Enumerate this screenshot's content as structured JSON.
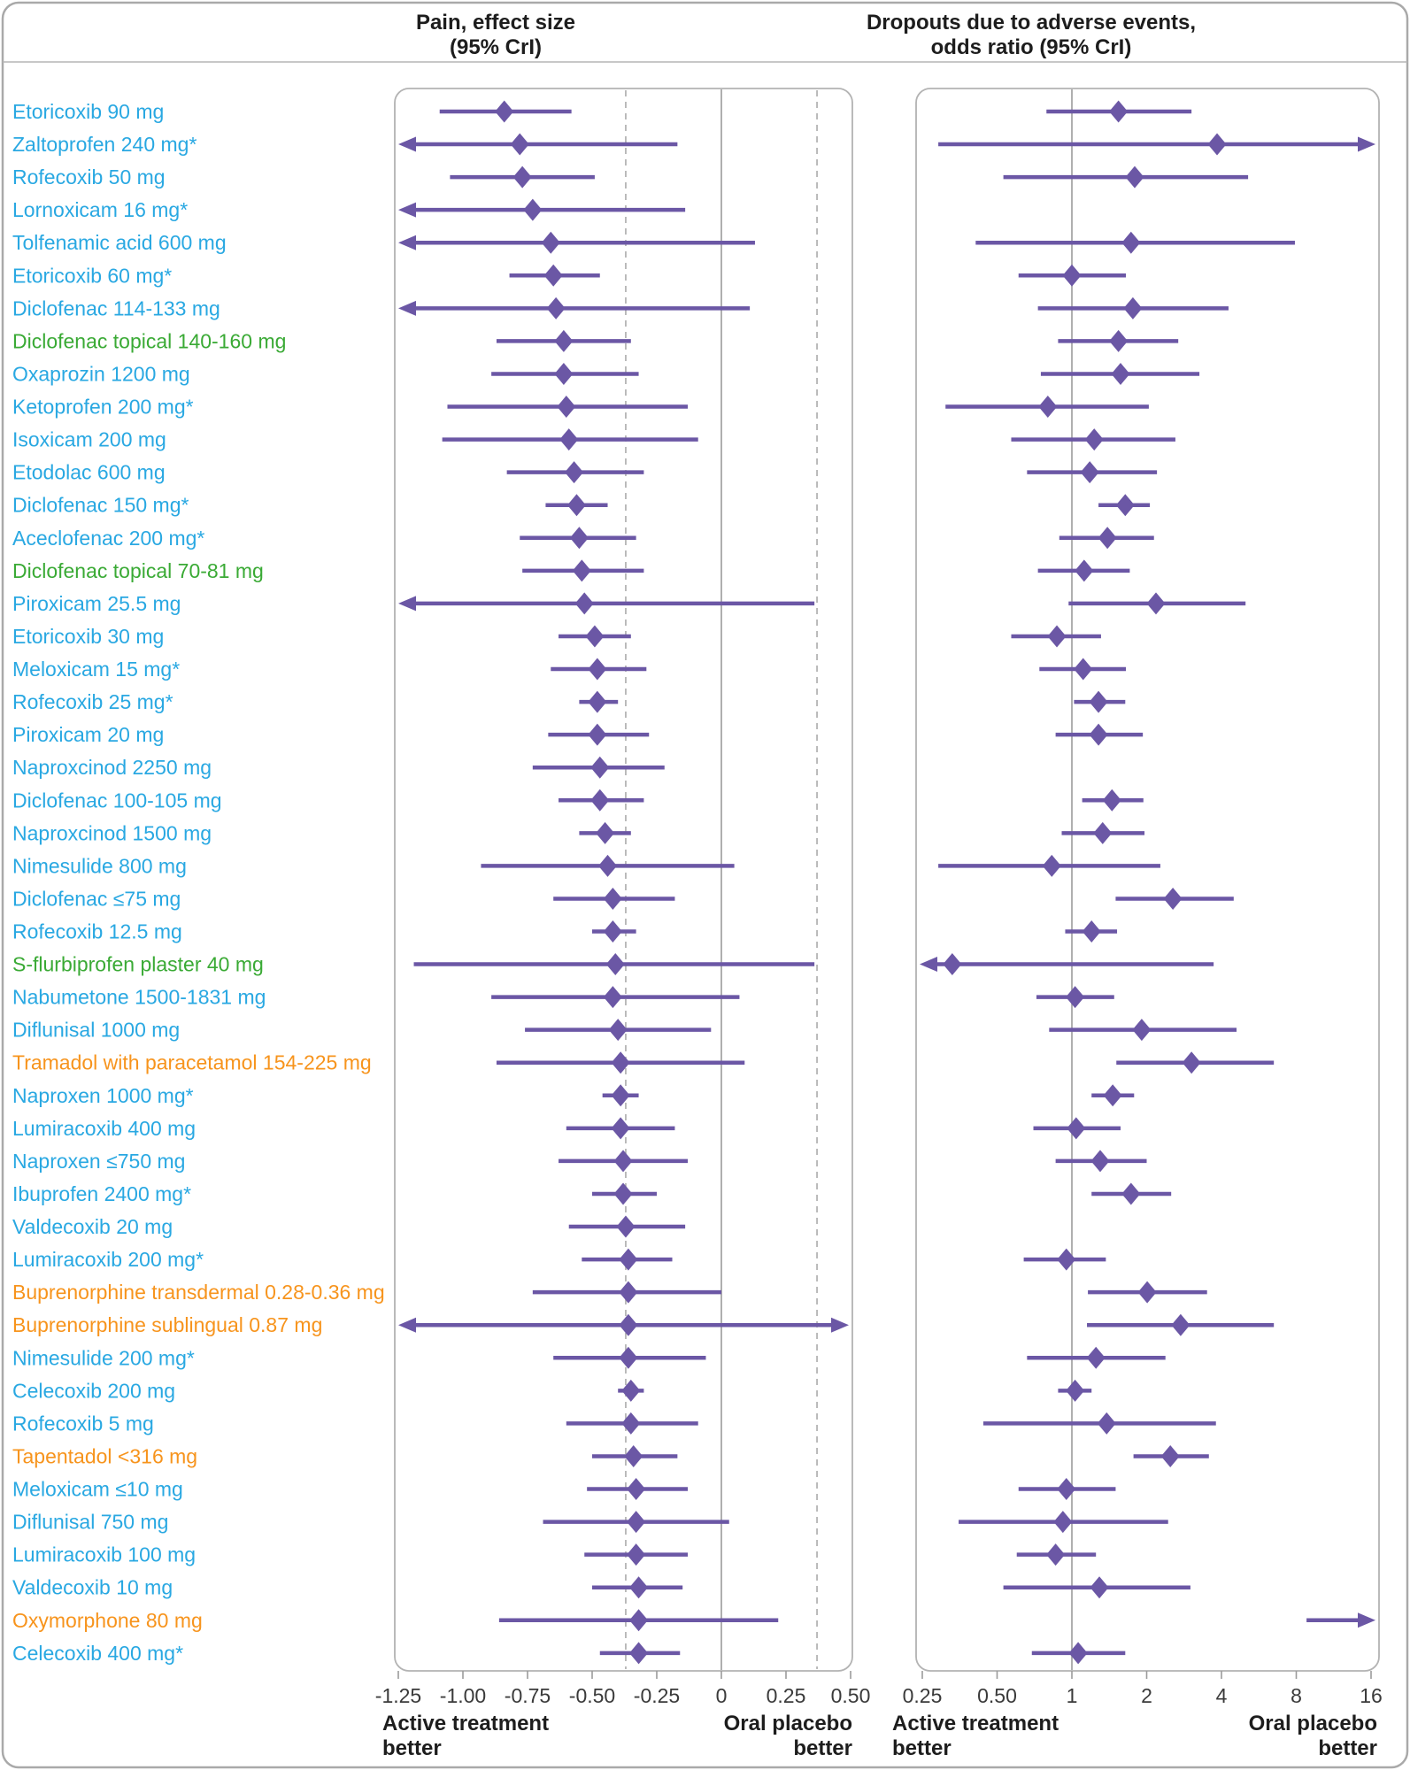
{
  "chart_data": {
    "type": "forest",
    "colors": {
      "blue": "#29a8e2",
      "green": "#3aaa35",
      "orange": "#f7941d",
      "purple": "#6b57a5",
      "grid": "#9b9b9b",
      "dashed": "#ababab",
      "panel_border": "#b3b3b3",
      "outer_border": "#a9a9a9",
      "text": "#1d1d1d",
      "tick_text": "#3a3a3a"
    },
    "panels": {
      "pain": {
        "title": [
          "Pain, effect size",
          "(95% CrI)"
        ],
        "axis_range": [
          -1.25,
          0.5
        ],
        "log": false,
        "ref_solid": 0,
        "ref_dashed": [
          -0.37,
          0.37
        ],
        "ticks": [
          {
            "v": -1.25,
            "l": "-1.25"
          },
          {
            "v": -1.0,
            "l": "-1.00"
          },
          {
            "v": -0.75,
            "l": "-0.75"
          },
          {
            "v": -0.5,
            "l": "-0.50"
          },
          {
            "v": -0.25,
            "l": "-0.25"
          },
          {
            "v": 0,
            "l": "0"
          },
          {
            "v": 0.25,
            "l": "0.25"
          },
          {
            "v": 0.5,
            "l": "0.50"
          }
        ],
        "better_left": [
          "Active treatment",
          "better"
        ],
        "better_right": [
          "Oral placebo",
          "better"
        ]
      },
      "drop": {
        "title": [
          "Dropouts due to adverse events,",
          "odds ratio (95% CrI)"
        ],
        "axis_range": [
          0.25,
          16
        ],
        "log": true,
        "ref_solid": 1,
        "ref_dashed": [],
        "ticks": [
          {
            "v": 0.25,
            "l": "0.25"
          },
          {
            "v": 0.5,
            "l": "0.50"
          },
          {
            "v": 1,
            "l": "1"
          },
          {
            "v": 2,
            "l": "2"
          },
          {
            "v": 4,
            "l": "4"
          },
          {
            "v": 8,
            "l": "8"
          },
          {
            "v": 16,
            "l": "16"
          }
        ],
        "better_left": [
          "Active treatment",
          "better"
        ],
        "better_right": [
          "Oral placebo",
          "better"
        ]
      }
    },
    "rows": [
      {
        "label": "Etoricoxib 90 mg",
        "c": "blue",
        "pain": {
          "lo": -1.09,
          "mid": -0.84,
          "hi": -0.58
        },
        "drop": {
          "lo": 0.79,
          "mid": 1.54,
          "hi": 3.03
        }
      },
      {
        "label": "Zaltoprofen 240 mg*",
        "c": "blue",
        "pain": {
          "lo": -1.25,
          "mid": -0.78,
          "hi": -0.17,
          "al": true
        },
        "drop": {
          "lo": 0.29,
          "mid": 3.84,
          "hi": 16,
          "ar": true
        }
      },
      {
        "label": "Rofecoxib 50 mg",
        "c": "blue",
        "pain": {
          "lo": -1.05,
          "mid": -0.77,
          "hi": -0.49
        },
        "drop": {
          "lo": 0.53,
          "mid": 1.79,
          "hi": 5.12
        }
      },
      {
        "label": "Lornoxicam 16 mg*",
        "c": "blue",
        "pain": {
          "lo": -1.25,
          "mid": -0.73,
          "hi": -0.14,
          "al": true
        },
        "drop": null
      },
      {
        "label": "Tolfenamic acid 600 mg",
        "c": "blue",
        "pain": {
          "lo": -1.25,
          "mid": -0.66,
          "hi": 0.13,
          "al": true
        },
        "drop": {
          "lo": 0.41,
          "mid": 1.73,
          "hi": 7.9
        }
      },
      {
        "label": "Etoricoxib 60 mg*",
        "c": "blue",
        "pain": {
          "lo": -0.82,
          "mid": -0.65,
          "hi": -0.47
        },
        "drop": {
          "lo": 0.61,
          "mid": 1.0,
          "hi": 1.65
        }
      },
      {
        "label": "Diclofenac 114-133 mg",
        "c": "blue",
        "pain": {
          "lo": -1.25,
          "mid": -0.64,
          "hi": 0.11,
          "al": true
        },
        "drop": {
          "lo": 0.73,
          "mid": 1.76,
          "hi": 4.27
        }
      },
      {
        "label": "Diclofenac topical 140-160 mg",
        "c": "green",
        "pain": {
          "lo": -0.87,
          "mid": -0.61,
          "hi": -0.35
        },
        "drop": {
          "lo": 0.88,
          "mid": 1.54,
          "hi": 2.68
        }
      },
      {
        "label": "Oxaprozin 1200 mg",
        "c": "blue",
        "pain": {
          "lo": -0.89,
          "mid": -0.61,
          "hi": -0.32
        },
        "drop": {
          "lo": 0.75,
          "mid": 1.57,
          "hi": 3.26
        }
      },
      {
        "label": "Ketoprofen 200 mg*",
        "c": "blue",
        "pain": {
          "lo": -1.06,
          "mid": -0.6,
          "hi": -0.13
        },
        "drop": {
          "lo": 0.31,
          "mid": 0.8,
          "hi": 2.04
        }
      },
      {
        "label": "Isoxicam 200 mg",
        "c": "blue",
        "pain": {
          "lo": -1.08,
          "mid": -0.59,
          "hi": -0.09
        },
        "drop": {
          "lo": 0.57,
          "mid": 1.23,
          "hi": 2.61
        }
      },
      {
        "label": "Etodolac 600 mg",
        "c": "blue",
        "pain": {
          "lo": -0.83,
          "mid": -0.57,
          "hi": -0.3
        },
        "drop": {
          "lo": 0.66,
          "mid": 1.18,
          "hi": 2.2
        }
      },
      {
        "label": "Diclofenac 150 mg*",
        "c": "blue",
        "pain": {
          "lo": -0.68,
          "mid": -0.56,
          "hi": -0.44
        },
        "drop": {
          "lo": 1.28,
          "mid": 1.64,
          "hi": 2.06
        }
      },
      {
        "label": "Aceclofenac 200 mg*",
        "c": "blue",
        "pain": {
          "lo": -0.78,
          "mid": -0.55,
          "hi": -0.33
        },
        "drop": {
          "lo": 0.89,
          "mid": 1.39,
          "hi": 2.14
        }
      },
      {
        "label": "Diclofenac topical 70-81 mg",
        "c": "green",
        "pain": {
          "lo": -0.77,
          "mid": -0.54,
          "hi": -0.3
        },
        "drop": {
          "lo": 0.73,
          "mid": 1.12,
          "hi": 1.71
        }
      },
      {
        "label": "Piroxicam 25.5 mg",
        "c": "blue",
        "pain": {
          "lo": -1.25,
          "mid": -0.53,
          "hi": 0.36,
          "al": true
        },
        "drop": {
          "lo": 0.97,
          "mid": 2.18,
          "hi": 5.0
        }
      },
      {
        "label": "Etoricoxib 30 mg",
        "c": "blue",
        "pain": {
          "lo": -0.63,
          "mid": -0.49,
          "hi": -0.35
        },
        "drop": {
          "lo": 0.57,
          "mid": 0.87,
          "hi": 1.31
        }
      },
      {
        "label": "Meloxicam 15 mg*",
        "c": "blue",
        "pain": {
          "lo": -0.66,
          "mid": -0.48,
          "hi": -0.29
        },
        "drop": {
          "lo": 0.74,
          "mid": 1.11,
          "hi": 1.65
        }
      },
      {
        "label": "Rofecoxib 25 mg*",
        "c": "blue",
        "pain": {
          "lo": -0.55,
          "mid": -0.48,
          "hi": -0.4
        },
        "drop": {
          "lo": 1.02,
          "mid": 1.28,
          "hi": 1.64
        }
      },
      {
        "label": "Piroxicam 20 mg",
        "c": "blue",
        "pain": {
          "lo": -0.67,
          "mid": -0.48,
          "hi": -0.28
        },
        "drop": {
          "lo": 0.86,
          "mid": 1.28,
          "hi": 1.93
        }
      },
      {
        "label": "Naproxcinod 2250 mg",
        "c": "blue",
        "pain": {
          "lo": -0.73,
          "mid": -0.47,
          "hi": -0.22
        },
        "drop": null
      },
      {
        "label": "Diclofenac 100-105 mg",
        "c": "blue",
        "pain": {
          "lo": -0.63,
          "mid": -0.47,
          "hi": -0.3
        },
        "drop": {
          "lo": 1.1,
          "mid": 1.45,
          "hi": 1.94
        }
      },
      {
        "label": "Naproxcinod 1500 mg",
        "c": "blue",
        "pain": {
          "lo": -0.55,
          "mid": -0.45,
          "hi": -0.35
        },
        "drop": {
          "lo": 0.91,
          "mid": 1.33,
          "hi": 1.96
        }
      },
      {
        "label": "Nimesulide 800 mg",
        "c": "blue",
        "pain": {
          "lo": -0.93,
          "mid": -0.44,
          "hi": 0.05
        },
        "drop": {
          "lo": 0.29,
          "mid": 0.83,
          "hi": 2.27
        }
      },
      {
        "label": "Diclofenac ≤75 mg",
        "c": "blue",
        "pain": {
          "lo": -0.65,
          "mid": -0.42,
          "hi": -0.18
        },
        "drop": {
          "lo": 1.5,
          "mid": 2.55,
          "hi": 4.48
        }
      },
      {
        "label": "Rofecoxib 12.5 mg",
        "c": "blue",
        "pain": {
          "lo": -0.5,
          "mid": -0.42,
          "hi": -0.33
        },
        "drop": {
          "lo": 0.94,
          "mid": 1.2,
          "hi": 1.52
        }
      },
      {
        "label": "S-flurbiprofen plaster 40 mg",
        "c": "green",
        "pain": {
          "lo": -1.19,
          "mid": -0.41,
          "hi": 0.36
        },
        "drop": {
          "lo": 0.25,
          "mid": 0.33,
          "hi": 3.72,
          "al": true
        }
      },
      {
        "label": "Nabumetone 1500-1831 mg",
        "c": "blue",
        "pain": {
          "lo": -0.89,
          "mid": -0.42,
          "hi": 0.07
        },
        "drop": {
          "lo": 0.72,
          "mid": 1.03,
          "hi": 1.48
        }
      },
      {
        "label": "Diflunisal 1000 mg",
        "c": "blue",
        "pain": {
          "lo": -0.76,
          "mid": -0.4,
          "hi": -0.04
        },
        "drop": {
          "lo": 0.81,
          "mid": 1.91,
          "hi": 4.6
        }
      },
      {
        "label": "Tramadol with paracetamol 154-225 mg",
        "c": "orange",
        "pain": {
          "lo": -0.87,
          "mid": -0.39,
          "hi": 0.09
        },
        "drop": {
          "lo": 1.51,
          "mid": 3.03,
          "hi": 6.5
        }
      },
      {
        "label": "Naproxen 1000 mg*",
        "c": "blue",
        "pain": {
          "lo": -0.46,
          "mid": -0.39,
          "hi": -0.32
        },
        "drop": {
          "lo": 1.2,
          "mid": 1.46,
          "hi": 1.78
        }
      },
      {
        "label": "Lumiracoxib 400 mg",
        "c": "blue",
        "pain": {
          "lo": -0.6,
          "mid": -0.39,
          "hi": -0.18
        },
        "drop": {
          "lo": 0.7,
          "mid": 1.04,
          "hi": 1.57
        }
      },
      {
        "label": "Naproxen ≤750 mg",
        "c": "blue",
        "pain": {
          "lo": -0.63,
          "mid": -0.38,
          "hi": -0.13
        },
        "drop": {
          "lo": 0.86,
          "mid": 1.3,
          "hi": 2.0
        }
      },
      {
        "label": "Ibuprofen 2400 mg*",
        "c": "blue",
        "pain": {
          "lo": -0.5,
          "mid": -0.38,
          "hi": -0.25
        },
        "drop": {
          "lo": 1.2,
          "mid": 1.73,
          "hi": 2.51
        }
      },
      {
        "label": "Valdecoxib 20 mg",
        "c": "blue",
        "pain": {
          "lo": -0.59,
          "mid": -0.37,
          "hi": -0.14
        },
        "drop": null
      },
      {
        "label": "Lumiracoxib 200 mg*",
        "c": "blue",
        "pain": {
          "lo": -0.54,
          "mid": -0.36,
          "hi": -0.19
        },
        "drop": {
          "lo": 0.64,
          "mid": 0.95,
          "hi": 1.37
        }
      },
      {
        "label": "Buprenorphine transdermal 0.28-0.36 mg",
        "c": "orange",
        "pain": {
          "lo": -0.73,
          "mid": -0.36,
          "hi": 0.0
        },
        "drop": {
          "lo": 1.16,
          "mid": 2.01,
          "hi": 3.5
        }
      },
      {
        "label": "Buprenorphine sublingual 0.87 mg",
        "c": "orange",
        "pain": {
          "lo": -1.25,
          "mid": -0.36,
          "hi": 0.5,
          "al": true,
          "ar": true
        },
        "drop": {
          "lo": 1.15,
          "mid": 2.74,
          "hi": 6.5
        }
      },
      {
        "label": "Nimesulide 200 mg*",
        "c": "blue",
        "pain": {
          "lo": -0.65,
          "mid": -0.36,
          "hi": -0.06
        },
        "drop": {
          "lo": 0.66,
          "mid": 1.25,
          "hi": 2.38
        }
      },
      {
        "label": "Celecoxib 200 mg",
        "c": "blue",
        "pain": {
          "lo": -0.4,
          "mid": -0.35,
          "hi": -0.3
        },
        "drop": {
          "lo": 0.88,
          "mid": 1.03,
          "hi": 1.2
        }
      },
      {
        "label": "Rofecoxib 5 mg",
        "c": "blue",
        "pain": {
          "lo": -0.6,
          "mid": -0.35,
          "hi": -0.09
        },
        "drop": {
          "lo": 0.44,
          "mid": 1.38,
          "hi": 3.8
        }
      },
      {
        "label": "Tapentadol <316 mg",
        "c": "orange",
        "pain": {
          "lo": -0.5,
          "mid": -0.34,
          "hi": -0.17
        },
        "drop": {
          "lo": 1.77,
          "mid": 2.49,
          "hi": 3.56
        }
      },
      {
        "label": "Meloxicam ≤10 mg",
        "c": "blue",
        "pain": {
          "lo": -0.52,
          "mid": -0.33,
          "hi": -0.13
        },
        "drop": {
          "lo": 0.61,
          "mid": 0.95,
          "hi": 1.5
        }
      },
      {
        "label": "Diflunisal 750 mg",
        "c": "blue",
        "pain": {
          "lo": -0.69,
          "mid": -0.33,
          "hi": 0.03
        },
        "drop": {
          "lo": 0.35,
          "mid": 0.92,
          "hi": 2.44
        }
      },
      {
        "label": "Lumiracoxib 100 mg",
        "c": "blue",
        "pain": {
          "lo": -0.53,
          "mid": -0.33,
          "hi": -0.13
        },
        "drop": {
          "lo": 0.6,
          "mid": 0.86,
          "hi": 1.25
        }
      },
      {
        "label": "Valdecoxib 10 mg",
        "c": "blue",
        "pain": {
          "lo": -0.5,
          "mid": -0.32,
          "hi": -0.15
        },
        "drop": {
          "lo": 0.53,
          "mid": 1.29,
          "hi": 3.0
        }
      },
      {
        "label": "Oxymorphone 80 mg",
        "c": "orange",
        "pain": {
          "lo": -0.86,
          "mid": -0.32,
          "hi": 0.22
        },
        "drop": {
          "lo": 8.8,
          "mid": null,
          "hi": 16,
          "ar": true
        }
      },
      {
        "label": "Celecoxib 400 mg*",
        "c": "blue",
        "pain": {
          "lo": -0.47,
          "mid": -0.32,
          "hi": -0.16
        },
        "drop": {
          "lo": 0.69,
          "mid": 1.06,
          "hi": 1.64
        }
      }
    ]
  }
}
